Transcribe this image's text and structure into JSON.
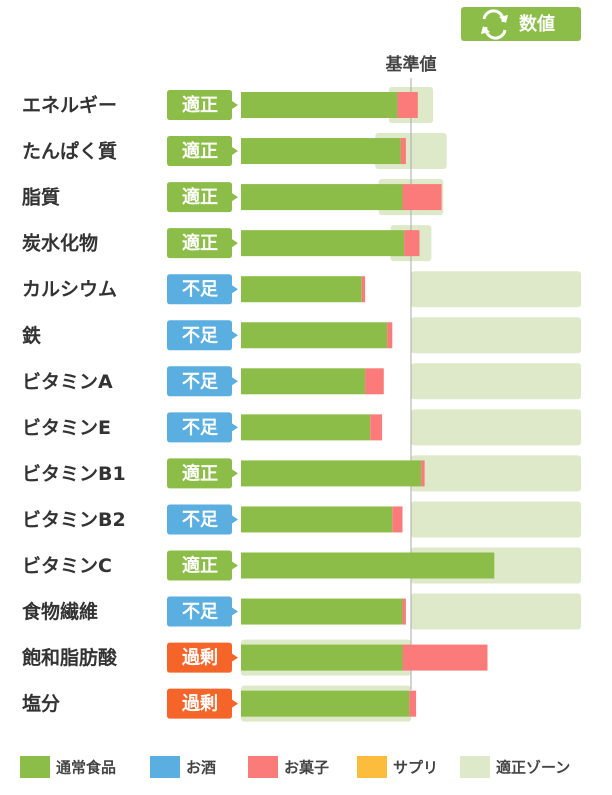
{
  "chart_data": {
    "type": "bar",
    "toggle_label": "数値",
    "reference_label": "基準値",
    "reference": 100,
    "xlim": [
      0,
      200
    ],
    "categories": [
      "エネルギー",
      "たんぱく質",
      "脂質",
      "炭水化物",
      "カルシウム",
      "鉄",
      "ビタミンA",
      "ビタミンE",
      "ビタミンB1",
      "ビタミンB2",
      "ビタミンC",
      "食物繊維",
      "飽和脂肪酸",
      "塩分"
    ],
    "status": [
      "適正",
      "適正",
      "適正",
      "適正",
      "不足",
      "不足",
      "不足",
      "不足",
      "適正",
      "不足",
      "適正",
      "不足",
      "過剰",
      "過剰"
    ],
    "status_colors": {
      "適正": "#8bbd48",
      "不足": "#5aaee0",
      "過剰": "#f5652a"
    },
    "series": [
      {
        "name": "通常食品",
        "color": "#8bbd48",
        "values": [
          92,
          94,
          95,
          96,
          71,
          86,
          73,
          76,
          106,
          89,
          149,
          95,
          95,
          99
        ]
      },
      {
        "name": "お酒",
        "color": "#5aaee0",
        "values": [
          0,
          0,
          0,
          0,
          0,
          0,
          0,
          0,
          0,
          0,
          0,
          0,
          0,
          0
        ]
      },
      {
        "name": "お菓子",
        "color": "#fb7b7b",
        "values": [
          12,
          3,
          23,
          9,
          2,
          3,
          11,
          7,
          2,
          6,
          0,
          2,
          50,
          4
        ]
      },
      {
        "name": "サプリ",
        "color": "#fbbd3b",
        "values": [
          0,
          0,
          0,
          0,
          0,
          0,
          0,
          0,
          0,
          0,
          0,
          0,
          0,
          0
        ]
      }
    ],
    "zone": {
      "name": "適正ゾーン",
      "color": "#dde9c8",
      "ranges": [
        [
          87,
          113
        ],
        [
          79,
          121
        ],
        [
          81,
          119
        ],
        [
          88,
          112
        ],
        [
          100,
          200
        ],
        [
          100,
          200
        ],
        [
          100,
          200
        ],
        [
          100,
          200
        ],
        [
          100,
          200
        ],
        [
          100,
          200
        ],
        [
          100,
          200
        ],
        [
          100,
          200
        ],
        [
          0,
          100
        ],
        [
          0,
          100
        ]
      ]
    }
  }
}
